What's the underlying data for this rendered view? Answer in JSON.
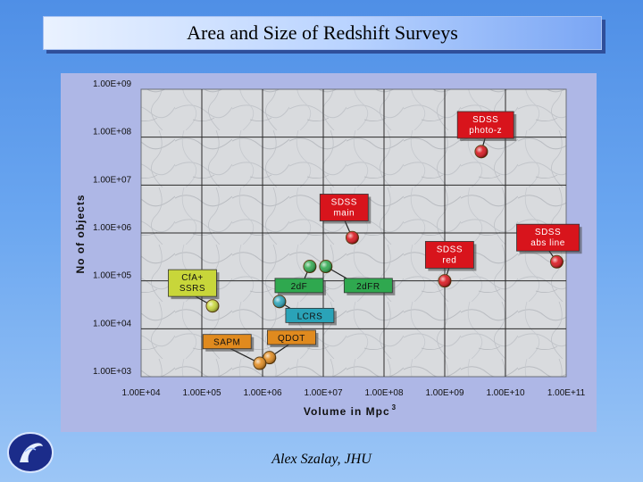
{
  "slide": {
    "title": "Area and Size of Redshift Surveys",
    "footer": "Alex Szalay, JHU"
  },
  "chart_data": {
    "type": "scatter",
    "title": "",
    "xlabel": "Volume in Mpc",
    "xlabel_superscript": "3",
    "ylabel": "No of objects",
    "x_scale": "log",
    "y_scale": "log",
    "xlim": [
      10000,
      100000000000
    ],
    "ylim": [
      1000,
      1000000000
    ],
    "x_tick_values": [
      10000,
      100000,
      1000000,
      10000000,
      100000000,
      1000000000,
      10000000000,
      100000000000
    ],
    "x_tick_labels": [
      "1.00E+04",
      "1.00E+05",
      "1.00E+06",
      "1.00E+07",
      "1.00E+08",
      "1.00E+09",
      "1.00E+10",
      "1.00E+11"
    ],
    "y_tick_values": [
      1000,
      10000,
      100000,
      1000000,
      10000000,
      100000000,
      1000000000
    ],
    "y_tick_labels": [
      "1.00E+03",
      "1.00E+04",
      "1.00E+05",
      "1.00E+06",
      "1.00E+07",
      "1.00E+08",
      "1.00E+09"
    ],
    "grid": true,
    "points": [
      {
        "label": "SDSS photo-z",
        "x": 4000000000,
        "y": 50000000,
        "color": "#d8141c",
        "lx": 4700000000,
        "ly": 180000000
      },
      {
        "label": "SDSS main",
        "x": 30000000,
        "y": 800000,
        "color": "#d8141c",
        "lx": 22000000,
        "ly": 3400000
      },
      {
        "label": "SDSS abs line",
        "x": 70000000000,
        "y": 250000,
        "color": "#d8141c",
        "lx": 50000000000,
        "ly": 800000
      },
      {
        "label": "SDSS red",
        "x": 1000000000,
        "y": 100000,
        "color": "#d8141c",
        "lx": 1200000000,
        "ly": 350000
      },
      {
        "label": "2dF",
        "x": 6000000,
        "y": 200000,
        "color": "#2fa84f",
        "lx": 4000000,
        "ly": 80000
      },
      {
        "label": "2dFR",
        "x": 11000000,
        "y": 200000,
        "color": "#2fa84f",
        "lx": 55000000,
        "ly": 80000
      },
      {
        "label": "CfA+ SSRS",
        "x": 150000,
        "y": 30000,
        "color": "#c8d63a",
        "lx": 70000,
        "ly": 90000
      },
      {
        "label": "LCRS",
        "x": 1900000,
        "y": 37000,
        "color": "#2aa3b8",
        "lx": 6000000,
        "ly": 19000
      },
      {
        "label": "QDOT",
        "x": 1300000,
        "y": 2500,
        "color": "#e08a1e",
        "lx": 3000000,
        "ly": 6600
      },
      {
        "label": "SAPM",
        "x": 900000,
        "y": 1900,
        "color": "#e08a1e",
        "lx": 260000,
        "ly": 5400
      }
    ]
  }
}
